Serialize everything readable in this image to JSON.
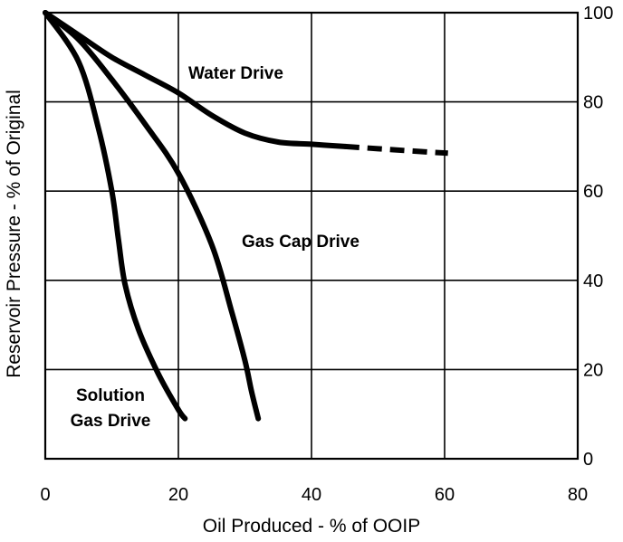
{
  "chart_data": {
    "type": "line",
    "title": "",
    "xlabel": "Oil Produced - % of OOIP",
    "ylabel": "Reservoir Pressure - % of Original",
    "xlim": [
      0,
      80
    ],
    "ylim": [
      0,
      100
    ],
    "xticks": [
      0,
      20,
      40,
      60,
      80
    ],
    "yticks": [
      0,
      20,
      40,
      60,
      80,
      100
    ],
    "y_axis_side": "right",
    "grid": true,
    "series": [
      {
        "name": "Water Drive",
        "label_lines": [
          "Water Drive"
        ],
        "x": [
          0,
          5,
          10,
          15,
          20,
          25,
          30,
          35,
          40,
          45
        ],
        "y": [
          100,
          95,
          90,
          86,
          82,
          77,
          73,
          71,
          70.5,
          70
        ],
        "dashed_x": [
          45,
          50,
          55,
          60.5
        ],
        "dashed_y": [
          70,
          69.5,
          69,
          68.5
        ]
      },
      {
        "name": "Gas Cap Drive",
        "label_lines": [
          "Gas Cap Drive"
        ],
        "x": [
          0,
          5,
          10,
          15,
          20,
          25,
          28,
          30,
          31,
          32
        ],
        "y": [
          100,
          94,
          85,
          75,
          64,
          48,
          33,
          22,
          15,
          9
        ]
      },
      {
        "name": "Solution Gas Drive",
        "label_lines": [
          "Solution",
          "Gas Drive"
        ],
        "x": [
          0,
          5,
          8,
          10,
          11,
          12,
          14,
          17,
          20,
          21
        ],
        "y": [
          100,
          89,
          74,
          60,
          49,
          39,
          29,
          19,
          11,
          9
        ]
      }
    ]
  }
}
